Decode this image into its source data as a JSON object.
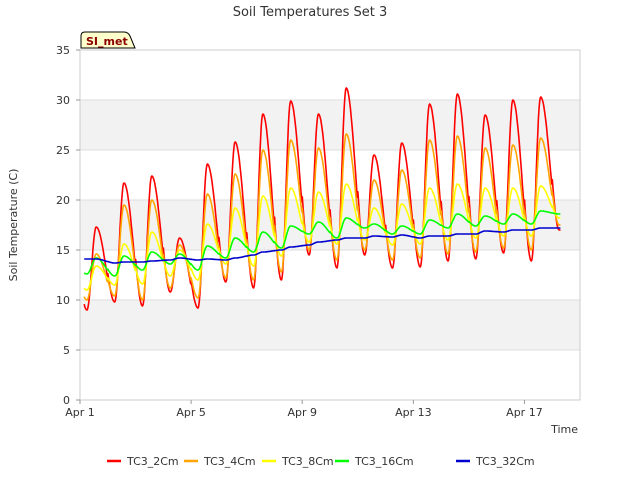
{
  "chart_data": {
    "type": "line",
    "title": "Soil Temperatures Set 3",
    "badge": "SI_met",
    "xlabel": "Time",
    "ylabel": "Soil Temperature (C)",
    "ylim": [
      0,
      35
    ],
    "yticks": [
      0,
      5,
      10,
      15,
      20,
      25,
      30,
      35
    ],
    "xlim_days": [
      1,
      19
    ],
    "xticks": [
      {
        "day": 1,
        "label": "Apr 1"
      },
      {
        "day": 5,
        "label": "Apr 5"
      },
      {
        "day": 9,
        "label": "Apr 9"
      },
      {
        "day": 13,
        "label": "Apr 13"
      },
      {
        "day": 17,
        "label": "Apr 17"
      }
    ],
    "grid": true,
    "legend_position": "bottom",
    "x": [
      "Apr 1",
      "Apr 2",
      "Apr 3",
      "Apr 4",
      "Apr 5",
      "Apr 6",
      "Apr 7",
      "Apr 8",
      "Apr 9",
      "Apr 10",
      "Apr 11",
      "Apr 12",
      "Apr 13",
      "Apr 14",
      "Apr 15",
      "Apr 16",
      "Apr 17",
      "Apr 18"
    ],
    "series": [
      {
        "name": "TC3_2Cm",
        "color": "#ff0000",
        "min": [
          9.0,
          9.8,
          9.4,
          10.8,
          9.2,
          11.8,
          11.2,
          12.0,
          14.5,
          13.2,
          14.5,
          13.2,
          13.3,
          13.9,
          14.1,
          14.7,
          13.9,
          17.0
        ],
        "max": [
          17.3,
          21.7,
          22.4,
          16.2,
          23.6,
          25.8,
          28.6,
          29.9,
          28.6,
          31.2,
          24.5,
          25.7,
          29.6,
          30.6,
          28.5,
          30.0,
          30.3,
          18.0
        ]
      },
      {
        "name": "TC3_4Cm",
        "color": "#ffa500",
        "min": [
          10.0,
          10.4,
          10.0,
          11.2,
          10.2,
          12.2,
          12.0,
          12.8,
          15.0,
          14.0,
          15.0,
          14.0,
          14.2,
          14.6,
          14.8,
          15.2,
          15.0,
          17.5
        ],
        "max": [
          14.6,
          19.5,
          20.0,
          15.5,
          20.6,
          22.6,
          25.0,
          26.0,
          25.2,
          26.6,
          22.0,
          23.0,
          26.0,
          26.4,
          25.2,
          25.5,
          26.2,
          18.5
        ]
      },
      {
        "name": "TC3_8Cm",
        "color": "#ffff00",
        "min": [
          11.0,
          11.5,
          11.6,
          12.4,
          12.0,
          13.6,
          13.4,
          14.4,
          15.8,
          15.6,
          16.0,
          15.5,
          15.6,
          16.0,
          16.2,
          16.4,
          16.4,
          18.2
        ],
        "max": [
          13.4,
          15.6,
          16.8,
          15.0,
          17.6,
          19.2,
          20.4,
          21.2,
          20.8,
          21.6,
          19.2,
          19.6,
          21.2,
          21.6,
          21.2,
          21.2,
          21.4,
          19.0
        ]
      },
      {
        "name": "TC3_16Cm",
        "color": "#00ff00",
        "min": [
          12.6,
          12.4,
          13.0,
          13.6,
          13.0,
          14.2,
          14.8,
          15.2,
          16.6,
          16.2,
          17.2,
          16.6,
          16.6,
          17.2,
          17.4,
          17.6,
          17.6,
          18.6
        ],
        "max": [
          14.2,
          14.4,
          14.8,
          14.6,
          15.4,
          16.2,
          16.8,
          17.4,
          17.8,
          18.2,
          17.6,
          17.4,
          18.0,
          18.6,
          18.4,
          18.6,
          18.9,
          19.0
        ]
      },
      {
        "name": "TC3_32Cm",
        "color": "#0000cd",
        "min": [
          14.1,
          13.7,
          13.8,
          14.0,
          14.0,
          14.0,
          14.5,
          15.0,
          15.5,
          16.0,
          16.2,
          16.3,
          16.2,
          16.4,
          16.6,
          16.8,
          17.0,
          17.2
        ],
        "max": [
          14.1,
          13.8,
          13.9,
          14.2,
          14.1,
          14.2,
          14.8,
          15.3,
          15.8,
          16.2,
          16.4,
          16.5,
          16.4,
          16.6,
          16.9,
          17.0,
          17.2,
          17.3
        ]
      }
    ]
  }
}
